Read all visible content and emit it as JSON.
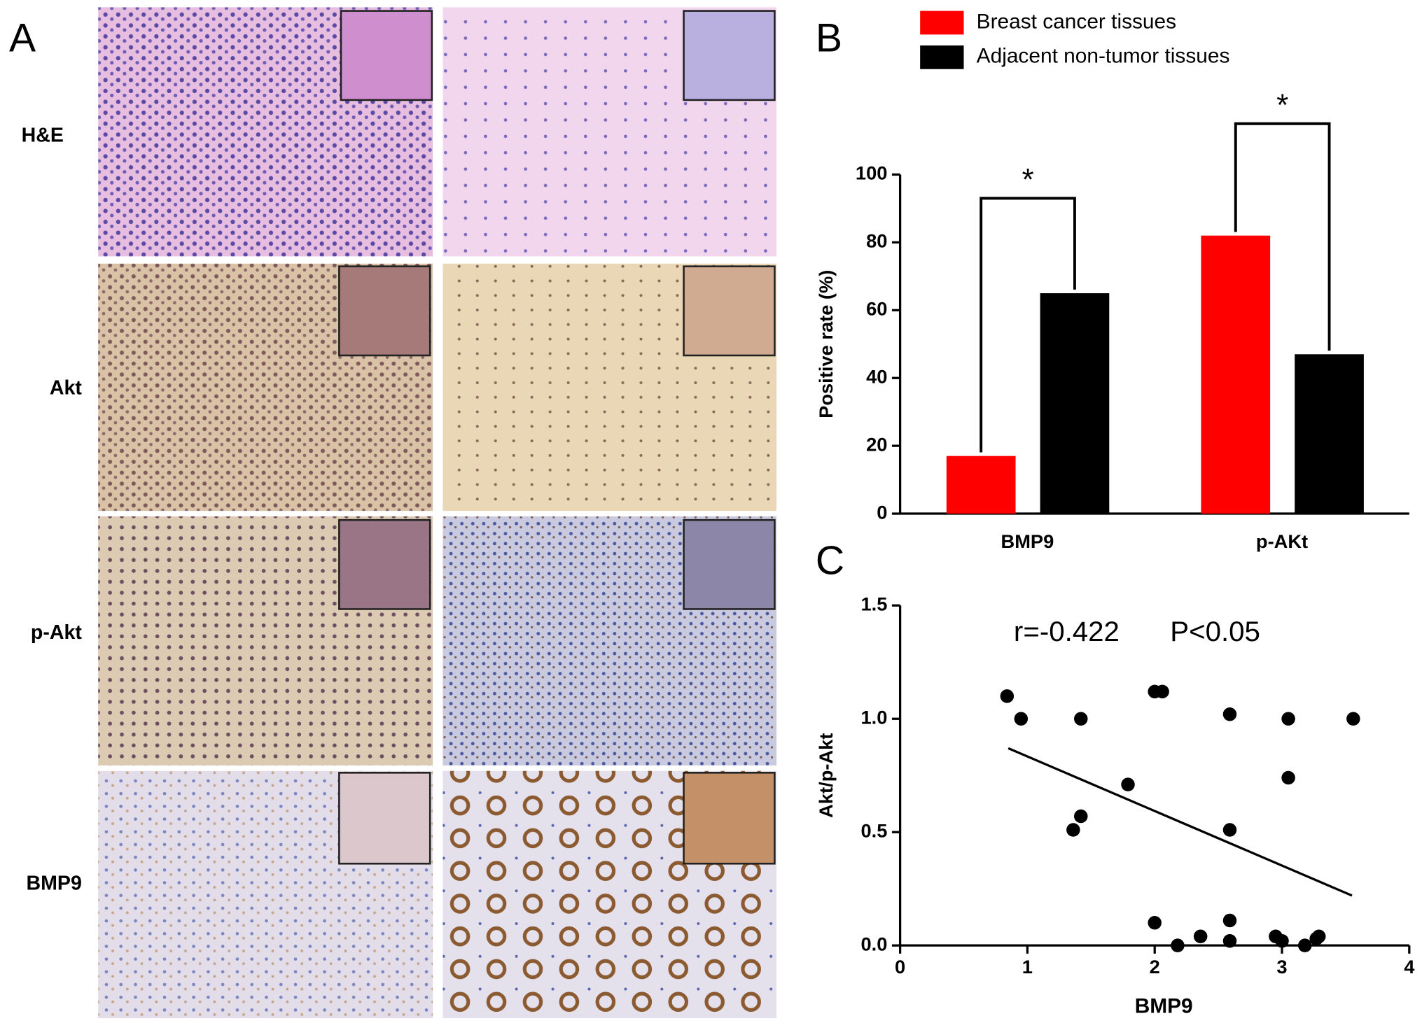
{
  "panel_labels": [
    "A",
    "B",
    "C"
  ],
  "histology": {
    "rows": [
      "H&E",
      "Akt",
      "p-Akt",
      "BMP9"
    ]
  },
  "chart_data": [
    {
      "type": "bar",
      "ylabel": "Positive rate (%)",
      "categories": [
        "BMP9",
        "p-AKt"
      ],
      "series": [
        {
          "name": "Breast cancer tissues",
          "color": "#ff0000",
          "values": [
            17,
            82
          ]
        },
        {
          "name": "Adjacent non-tumor tissues",
          "color": "#000000",
          "values": [
            65,
            47
          ]
        }
      ],
      "ylim": [
        0,
        100
      ],
      "yticks": [
        0,
        20,
        40,
        60,
        80,
        100
      ],
      "significance": [
        {
          "label": "*",
          "y": 93
        },
        {
          "label": "*",
          "y": 115
        }
      ]
    },
    {
      "type": "scatter",
      "xlabel": "BMP9",
      "ylabel": "Akt/p-Akt",
      "color": "#000000",
      "x": [
        0.84,
        0.95,
        1.42,
        2.0,
        2.06,
        2.59,
        3.05,
        3.56,
        3.05,
        1.79,
        1.42,
        1.36,
        2.59,
        2.0,
        2.59,
        2.18,
        2.36,
        2.59,
        2.95,
        3.0,
        3.18,
        3.27,
        3.29
      ],
      "y": [
        1.1,
        1.0,
        1.0,
        1.12,
        1.12,
        1.02,
        1.0,
        1.0,
        0.74,
        0.71,
        0.57,
        0.51,
        0.51,
        0.1,
        0.11,
        0.0,
        0.04,
        0.02,
        0.04,
        0.02,
        0.0,
        0.03,
        0.04
      ],
      "xlim": [
        0,
        4
      ],
      "xticks": [
        0,
        1,
        2,
        3,
        4
      ],
      "ylim": [
        0,
        1.5
      ],
      "yticks": [
        {
          "value": 0,
          "label": "0.0"
        },
        {
          "value": 0.5,
          "label": "0.5"
        },
        {
          "value": 1,
          "label": "1.0"
        },
        {
          "value": 1.5,
          "label": "1.5"
        }
      ],
      "annotations": [
        "r=-0.422",
        "P<0.05"
      ],
      "trendline": {
        "x": [
          0.85,
          3.55
        ],
        "y": [
          0.87,
          0.22
        ]
      }
    }
  ]
}
